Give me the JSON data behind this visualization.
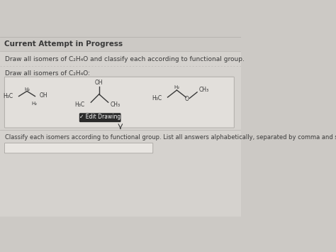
{
  "page_bg": "#ccc9c5",
  "content_bg": "#d5d2ce",
  "title_text": "Current Attempt in Progress",
  "question_text": "Draw all isomers of C₂H₄O and classify each according to functional group.",
  "draw_label": "Draw all isomers of C₂H₄O:",
  "edit_button_text": "✓ Edit Drawing",
  "classify_text": "Classify each isomers according to functional group. List all answers alphabetically, separated by comma and space.",
  "line_color": "#3a3a3a",
  "box_edge_color": "#b5b2ae",
  "box_face_color": "#e2dfdb",
  "answer_box_face": "#e8e5e1",
  "font_size_title": 7.5,
  "font_size_question": 6.5,
  "font_size_label": 5.5,
  "font_size_classify": 6.0,
  "font_size_btn": 5.5
}
